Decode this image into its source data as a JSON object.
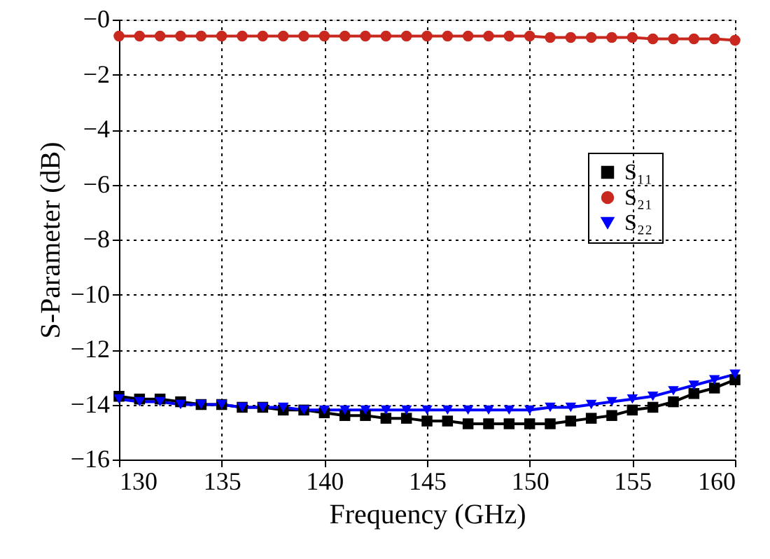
{
  "chart_data": {
    "type": "line",
    "xlabel": "Frequency (GHz)",
    "ylabel": "S-Parameter (dB)",
    "x": [
      130,
      131,
      132,
      133,
      134,
      135,
      136,
      137,
      138,
      139,
      140,
      141,
      142,
      143,
      144,
      145,
      146,
      147,
      148,
      149,
      150,
      151,
      152,
      153,
      154,
      155,
      156,
      157,
      158,
      159,
      160
    ],
    "series": [
      {
        "name": "S₁₁",
        "color": "#000000",
        "marker": "square",
        "values": [
          -13.7,
          -13.8,
          -13.8,
          -13.9,
          -14.0,
          -14.0,
          -14.1,
          -14.1,
          -14.2,
          -14.2,
          -14.3,
          -14.4,
          -14.4,
          -14.5,
          -14.5,
          -14.6,
          -14.6,
          -14.7,
          -14.7,
          -14.7,
          -14.7,
          -14.7,
          -14.6,
          -14.5,
          -14.4,
          -14.2,
          -14.1,
          -13.9,
          -13.6,
          -13.4,
          -13.1
        ]
      },
      {
        "name": "S₂₁",
        "color": "#c8281e",
        "marker": "circle",
        "values": [
          -0.6,
          -0.6,
          -0.6,
          -0.6,
          -0.6,
          -0.6,
          -0.6,
          -0.6,
          -0.6,
          -0.6,
          -0.6,
          -0.6,
          -0.6,
          -0.6,
          -0.6,
          -0.6,
          -0.6,
          -0.6,
          -0.6,
          -0.6,
          -0.6,
          -0.65,
          -0.65,
          -0.65,
          -0.65,
          -0.65,
          -0.7,
          -0.7,
          -0.7,
          -0.7,
          -0.75
        ]
      },
      {
        "name": "S₂₂",
        "color": "#0000ff",
        "marker": "triangle-down",
        "values": [
          -13.8,
          -13.9,
          -13.9,
          -14.0,
          -14.0,
          -14.0,
          -14.1,
          -14.1,
          -14.1,
          -14.2,
          -14.2,
          -14.2,
          -14.2,
          -14.2,
          -14.2,
          -14.2,
          -14.2,
          -14.2,
          -14.2,
          -14.2,
          -14.2,
          -14.1,
          -14.1,
          -14.0,
          -13.9,
          -13.8,
          -13.7,
          -13.5,
          -13.3,
          -13.1,
          -12.9
        ]
      }
    ],
    "xlim": [
      130,
      160
    ],
    "xticks": [
      130,
      135,
      140,
      145,
      150,
      155,
      160
    ],
    "ylim": [
      -16,
      0
    ],
    "yticks": [
      -16,
      -14,
      -12,
      -10,
      -8,
      -6,
      -4,
      -2,
      {
        "value": 0,
        "label": "−0"
      }
    ],
    "grid": true,
    "legend": "right",
    "line_style": "solid"
  }
}
